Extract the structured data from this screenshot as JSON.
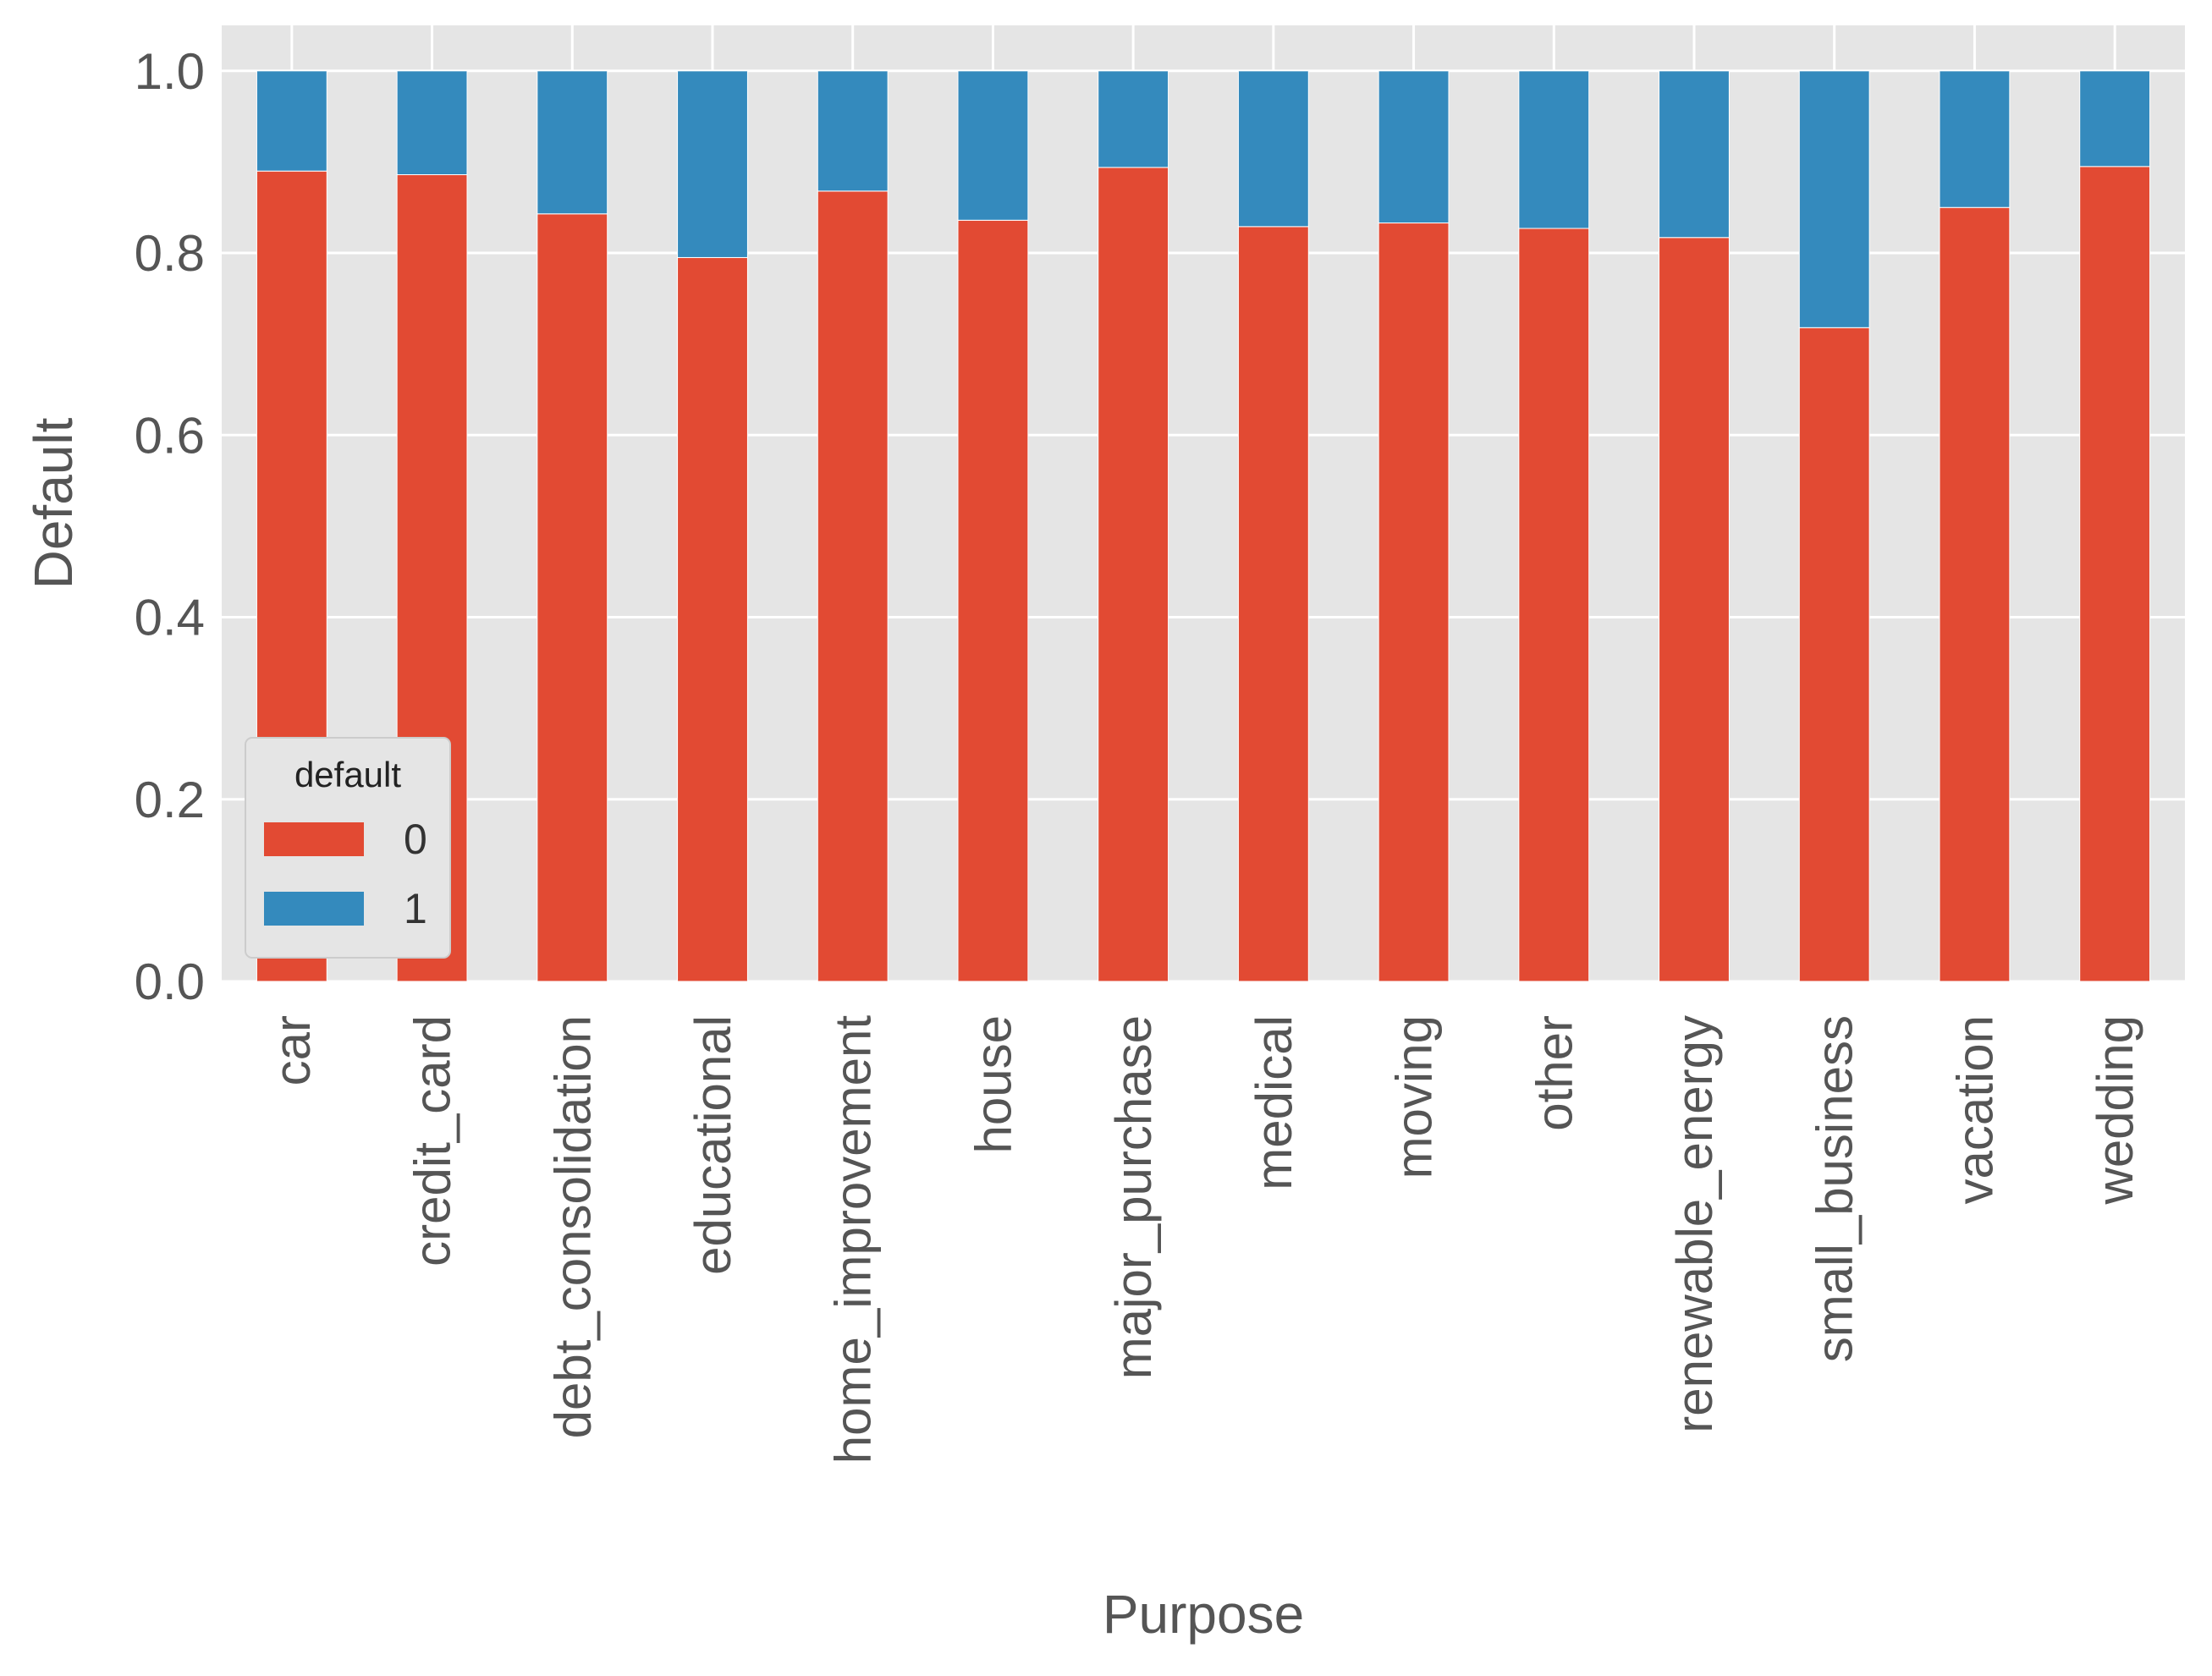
{
  "chart_data": {
    "type": "bar",
    "stacked": true,
    "categories": [
      "car",
      "credit_card",
      "debt_consolidation",
      "educational",
      "home_improvement",
      "house",
      "major_purchase",
      "medical",
      "moving",
      "other",
      "renewable_energy",
      "small_business",
      "vacation",
      "wedding"
    ],
    "series": [
      {
        "name": "0",
        "color": "#E24A33",
        "values": [
          0.89,
          0.886,
          0.843,
          0.795,
          0.868,
          0.836,
          0.894,
          0.829,
          0.833,
          0.827,
          0.817,
          0.718,
          0.85,
          0.895
        ]
      },
      {
        "name": "1",
        "color": "#348ABD",
        "values": [
          0.11,
          0.114,
          0.157,
          0.205,
          0.132,
          0.164,
          0.106,
          0.171,
          0.167,
          0.173,
          0.183,
          0.282,
          0.15,
          0.105
        ]
      }
    ],
    "title": "",
    "xlabel": "Purpose",
    "ylabel": "Default",
    "ylim": [
      0,
      1.05
    ],
    "yticks": [
      "0.0",
      "0.2",
      "0.4",
      "0.6",
      "0.8",
      "1.0"
    ],
    "grid": true,
    "legend": {
      "title": "default",
      "position": "lower-left"
    },
    "colors": {
      "background": "#E5E5E5",
      "grid": "#FFFFFF",
      "text": "#555555"
    }
  }
}
